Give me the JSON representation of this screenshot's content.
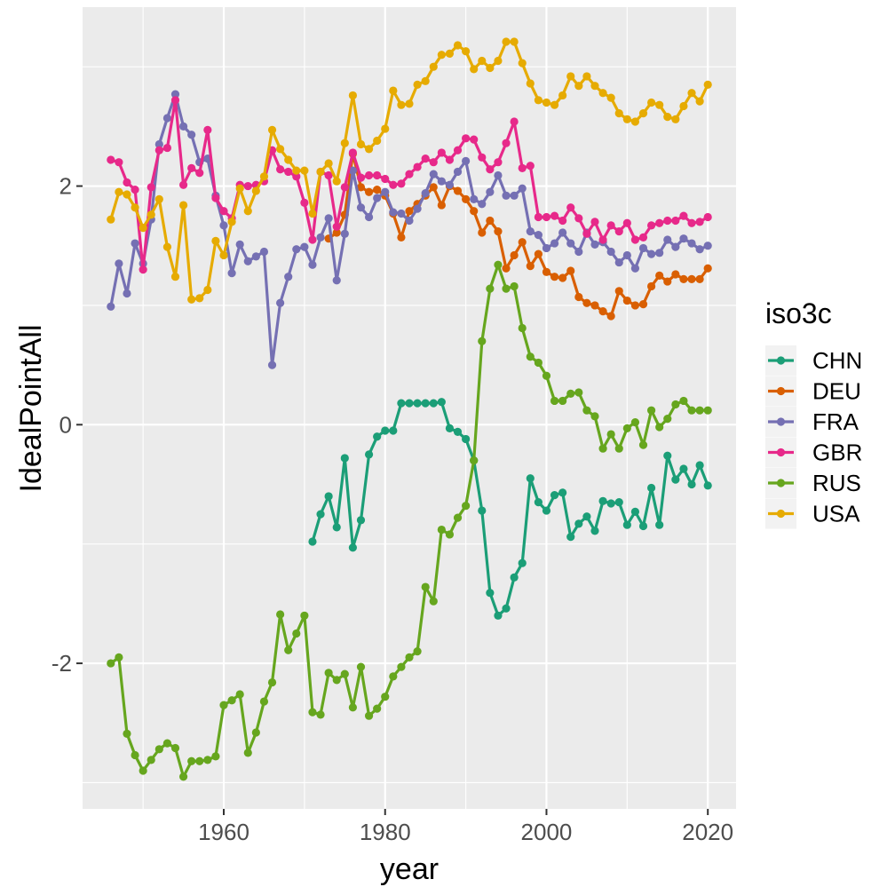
{
  "chart_data": {
    "type": "line",
    "xlabel": "year",
    "ylabel": "IdealPointAll",
    "xlim": [
      1942.5,
      2023.5
    ],
    "ylim": [
      -3.22,
      3.5
    ],
    "x_ticks": [
      1960,
      1980,
      2000,
      2020
    ],
    "y_ticks": [
      -2,
      0,
      2
    ],
    "grid": true,
    "legend_title": "iso3c",
    "legend_position": "right",
    "series": [
      {
        "name": "CHN",
        "color": "#1b9e77",
        "x": [
          1971,
          1972,
          1973,
          1974,
          1975,
          1976,
          1977,
          1978,
          1979,
          1980,
          1981,
          1982,
          1983,
          1984,
          1985,
          1986,
          1987,
          1988,
          1989,
          1990,
          1991,
          1992,
          1993,
          1994,
          1995,
          1996,
          1997,
          1998,
          1999,
          2000,
          2001,
          2002,
          2003,
          2004,
          2005,
          2006,
          2007,
          2008,
          2009,
          2010,
          2011,
          2012,
          2013,
          2014,
          2015,
          2016,
          2017,
          2018,
          2019,
          2020
        ],
        "y": [
          -0.98,
          -0.75,
          -0.6,
          -0.86,
          -0.28,
          -1.03,
          -0.8,
          -0.25,
          -0.1,
          -0.05,
          -0.05,
          0.18,
          0.18,
          0.18,
          0.18,
          0.18,
          0.19,
          -0.03,
          -0.06,
          -0.12,
          -0.3,
          -0.72,
          -1.41,
          -1.6,
          -1.54,
          -1.28,
          -1.16,
          -0.45,
          -0.65,
          -0.72,
          -0.59,
          -0.57,
          -0.94,
          -0.83,
          -0.77,
          -0.89,
          -0.64,
          -0.66,
          -0.65,
          -0.84,
          -0.73,
          -0.85,
          -0.53,
          -0.84,
          -0.26,
          -0.46,
          -0.37,
          -0.5,
          -0.34,
          -0.51
        ]
      },
      {
        "name": "DEU",
        "color": "#d95f02",
        "x": [
          1973,
          1974,
          1975,
          1976,
          1977,
          1978,
          1979,
          1980,
          1981,
          1982,
          1983,
          1984,
          1985,
          1986,
          1987,
          1988,
          1989,
          1990,
          1991,
          1992,
          1993,
          1994,
          1995,
          1996,
          1997,
          1998,
          1999,
          2000,
          2001,
          2002,
          2003,
          2004,
          2005,
          2006,
          2007,
          2008,
          2009,
          2010,
          2011,
          2012,
          2013,
          2014,
          2015,
          2016,
          2017,
          2018,
          2019,
          2020
        ],
        "y": [
          1.56,
          1.61,
          1.76,
          2.27,
          1.99,
          1.95,
          1.97,
          1.92,
          1.77,
          1.57,
          1.79,
          1.85,
          1.92,
          1.99,
          1.84,
          2.0,
          1.96,
          1.89,
          1.79,
          1.61,
          1.71,
          1.62,
          1.31,
          1.42,
          1.53,
          1.33,
          1.43,
          1.28,
          1.24,
          1.23,
          1.29,
          1.07,
          1.02,
          1.0,
          0.95,
          0.91,
          1.12,
          1.04,
          1.0,
          1.01,
          1.16,
          1.25,
          1.2,
          1.26,
          1.22,
          1.22,
          1.22,
          1.31
        ]
      },
      {
        "name": "FRA",
        "color": "#7570b3",
        "x": [
          1946,
          1947,
          1948,
          1949,
          1950,
          1951,
          1952,
          1953,
          1954,
          1955,
          1956,
          1957,
          1958,
          1959,
          1960,
          1961,
          1962,
          1963,
          1964,
          1965,
          1966,
          1967,
          1968,
          1969,
          1970,
          1971,
          1972,
          1973,
          1974,
          1975,
          1976,
          1977,
          1978,
          1979,
          1980,
          1981,
          1982,
          1983,
          1984,
          1985,
          1986,
          1987,
          1988,
          1989,
          1990,
          1991,
          1992,
          1993,
          1994,
          1995,
          1996,
          1997,
          1998,
          1999,
          2000,
          2001,
          2002,
          2003,
          2004,
          2005,
          2006,
          2007,
          2008,
          2009,
          2010,
          2011,
          2012,
          2013,
          2014,
          2015,
          2016,
          2017,
          2018,
          2019,
          2020
        ],
        "y": [
          0.99,
          1.35,
          1.1,
          1.52,
          1.35,
          1.72,
          2.35,
          2.57,
          2.77,
          2.5,
          2.43,
          2.2,
          2.23,
          1.92,
          1.67,
          1.27,
          1.51,
          1.37,
          1.41,
          1.45,
          0.5,
          1.02,
          1.24,
          1.47,
          1.49,
          1.34,
          1.57,
          1.73,
          1.21,
          1.6,
          2.13,
          1.82,
          1.74,
          1.9,
          1.95,
          1.78,
          1.77,
          1.71,
          1.81,
          1.94,
          2.1,
          2.04,
          2.01,
          2.12,
          2.21,
          1.89,
          1.85,
          1.95,
          2.09,
          1.92,
          1.92,
          1.98,
          1.62,
          1.59,
          1.48,
          1.52,
          1.61,
          1.52,
          1.45,
          1.61,
          1.51,
          1.53,
          1.45,
          1.36,
          1.42,
          1.31,
          1.48,
          1.43,
          1.44,
          1.55,
          1.49,
          1.56,
          1.52,
          1.47,
          1.5
        ]
      },
      {
        "name": "GBR",
        "color": "#e7298a",
        "x": [
          1946,
          1947,
          1948,
          1949,
          1950,
          1951,
          1952,
          1953,
          1954,
          1955,
          1956,
          1957,
          1958,
          1959,
          1960,
          1961,
          1962,
          1963,
          1964,
          1965,
          1966,
          1967,
          1968,
          1969,
          1970,
          1971,
          1972,
          1973,
          1974,
          1975,
          1976,
          1977,
          1978,
          1979,
          1980,
          1981,
          1982,
          1983,
          1984,
          1985,
          1986,
          1987,
          1988,
          1989,
          1990,
          1991,
          1992,
          1993,
          1994,
          1995,
          1996,
          1997,
          1998,
          1999,
          2000,
          2001,
          2002,
          2003,
          2004,
          2005,
          2006,
          2007,
          2008,
          2009,
          2010,
          2011,
          2012,
          2013,
          2014,
          2015,
          2016,
          2017,
          2018,
          2019,
          2020
        ],
        "y": [
          2.22,
          2.2,
          2.03,
          1.97,
          1.3,
          1.99,
          2.3,
          2.32,
          2.72,
          2.01,
          2.15,
          2.11,
          2.47,
          1.9,
          1.79,
          1.73,
          2.01,
          2.0,
          2.01,
          2.04,
          2.3,
          2.14,
          2.12,
          2.08,
          1.86,
          1.55,
          2.12,
          2.09,
          1.66,
          1.99,
          2.28,
          2.07,
          2.09,
          2.09,
          2.06,
          2.01,
          2.02,
          2.1,
          2.16,
          2.23,
          2.2,
          2.28,
          2.22,
          2.3,
          2.4,
          2.39,
          2.24,
          2.14,
          2.2,
          2.36,
          2.54,
          2.15,
          2.17,
          1.74,
          1.74,
          1.75,
          1.71,
          1.82,
          1.73,
          1.6,
          1.7,
          1.55,
          1.67,
          1.62,
          1.69,
          1.55,
          1.57,
          1.67,
          1.69,
          1.71,
          1.71,
          1.75,
          1.69,
          1.7,
          1.74
        ]
      },
      {
        "name": "RUS",
        "color": "#66a61e",
        "x": [
          1946,
          1947,
          1948,
          1949,
          1950,
          1951,
          1952,
          1953,
          1954,
          1955,
          1956,
          1957,
          1958,
          1959,
          1960,
          1961,
          1962,
          1963,
          1964,
          1965,
          1966,
          1967,
          1968,
          1969,
          1970,
          1971,
          1972,
          1973,
          1974,
          1975,
          1976,
          1977,
          1978,
          1979,
          1980,
          1981,
          1982,
          1983,
          1984,
          1985,
          1986,
          1987,
          1988,
          1989,
          1990,
          1991,
          1992,
          1993,
          1994,
          1995,
          1996,
          1997,
          1998,
          1999,
          2000,
          2001,
          2002,
          2003,
          2004,
          2005,
          2006,
          2007,
          2008,
          2009,
          2010,
          2011,
          2012,
          2013,
          2014,
          2015,
          2016,
          2017,
          2018,
          2019,
          2020
        ],
        "y": [
          -2.0,
          -1.95,
          -2.59,
          -2.77,
          -2.9,
          -2.81,
          -2.72,
          -2.67,
          -2.71,
          -2.95,
          -2.82,
          -2.82,
          -2.81,
          -2.78,
          -2.35,
          -2.31,
          -2.26,
          -2.75,
          -2.58,
          -2.32,
          -2.16,
          -1.59,
          -1.89,
          -1.75,
          -1.6,
          -2.41,
          -2.43,
          -2.08,
          -2.14,
          -2.09,
          -2.37,
          -2.03,
          -2.44,
          -2.38,
          -2.28,
          -2.11,
          -2.03,
          -1.95,
          -1.9,
          -1.36,
          -1.48,
          -0.88,
          -0.92,
          -0.78,
          -0.68,
          -0.3,
          0.7,
          1.14,
          1.34,
          1.14,
          1.16,
          0.81,
          0.57,
          0.52,
          0.41,
          0.2,
          0.2,
          0.26,
          0.27,
          0.12,
          0.07,
          -0.2,
          -0.08,
          -0.2,
          -0.03,
          0.02,
          -0.17,
          0.12,
          -0.02,
          0.05,
          0.17,
          0.2,
          0.12,
          0.12,
          0.12
        ]
      },
      {
        "name": "USA",
        "color": "#e6ab02",
        "x": [
          1946,
          1947,
          1948,
          1949,
          1950,
          1951,
          1952,
          1953,
          1954,
          1955,
          1956,
          1957,
          1958,
          1959,
          1960,
          1961,
          1962,
          1963,
          1964,
          1965,
          1966,
          1967,
          1968,
          1969,
          1970,
          1971,
          1972,
          1973,
          1974,
          1975,
          1976,
          1977,
          1978,
          1979,
          1980,
          1981,
          1982,
          1983,
          1984,
          1985,
          1986,
          1987,
          1988,
          1989,
          1990,
          1991,
          1992,
          1993,
          1994,
          1995,
          1996,
          1997,
          1998,
          1999,
          2000,
          2001,
          2002,
          2003,
          2004,
          2005,
          2006,
          2007,
          2008,
          2009,
          2010,
          2011,
          2012,
          2013,
          2014,
          2015,
          2016,
          2017,
          2018,
          2019,
          2020
        ],
        "y": [
          1.72,
          1.95,
          1.93,
          1.82,
          1.65,
          1.76,
          1.89,
          1.49,
          1.24,
          1.84,
          1.05,
          1.06,
          1.13,
          1.54,
          1.42,
          1.7,
          1.98,
          1.79,
          1.96,
          2.08,
          2.47,
          2.31,
          2.22,
          2.13,
          2.13,
          1.77,
          2.12,
          2.19,
          2.04,
          2.36,
          2.76,
          2.35,
          2.31,
          2.38,
          2.48,
          2.8,
          2.68,
          2.69,
          2.85,
          2.88,
          3.0,
          3.1,
          3.11,
          3.18,
          3.13,
          2.98,
          3.05,
          2.99,
          3.05,
          3.21,
          3.21,
          3.03,
          2.86,
          2.72,
          2.7,
          2.68,
          2.76,
          2.92,
          2.84,
          2.92,
          2.84,
          2.78,
          2.74,
          2.61,
          2.56,
          2.54,
          2.61,
          2.7,
          2.68,
          2.58,
          2.56,
          2.67,
          2.78,
          2.71,
          2.85
        ]
      }
    ]
  }
}
